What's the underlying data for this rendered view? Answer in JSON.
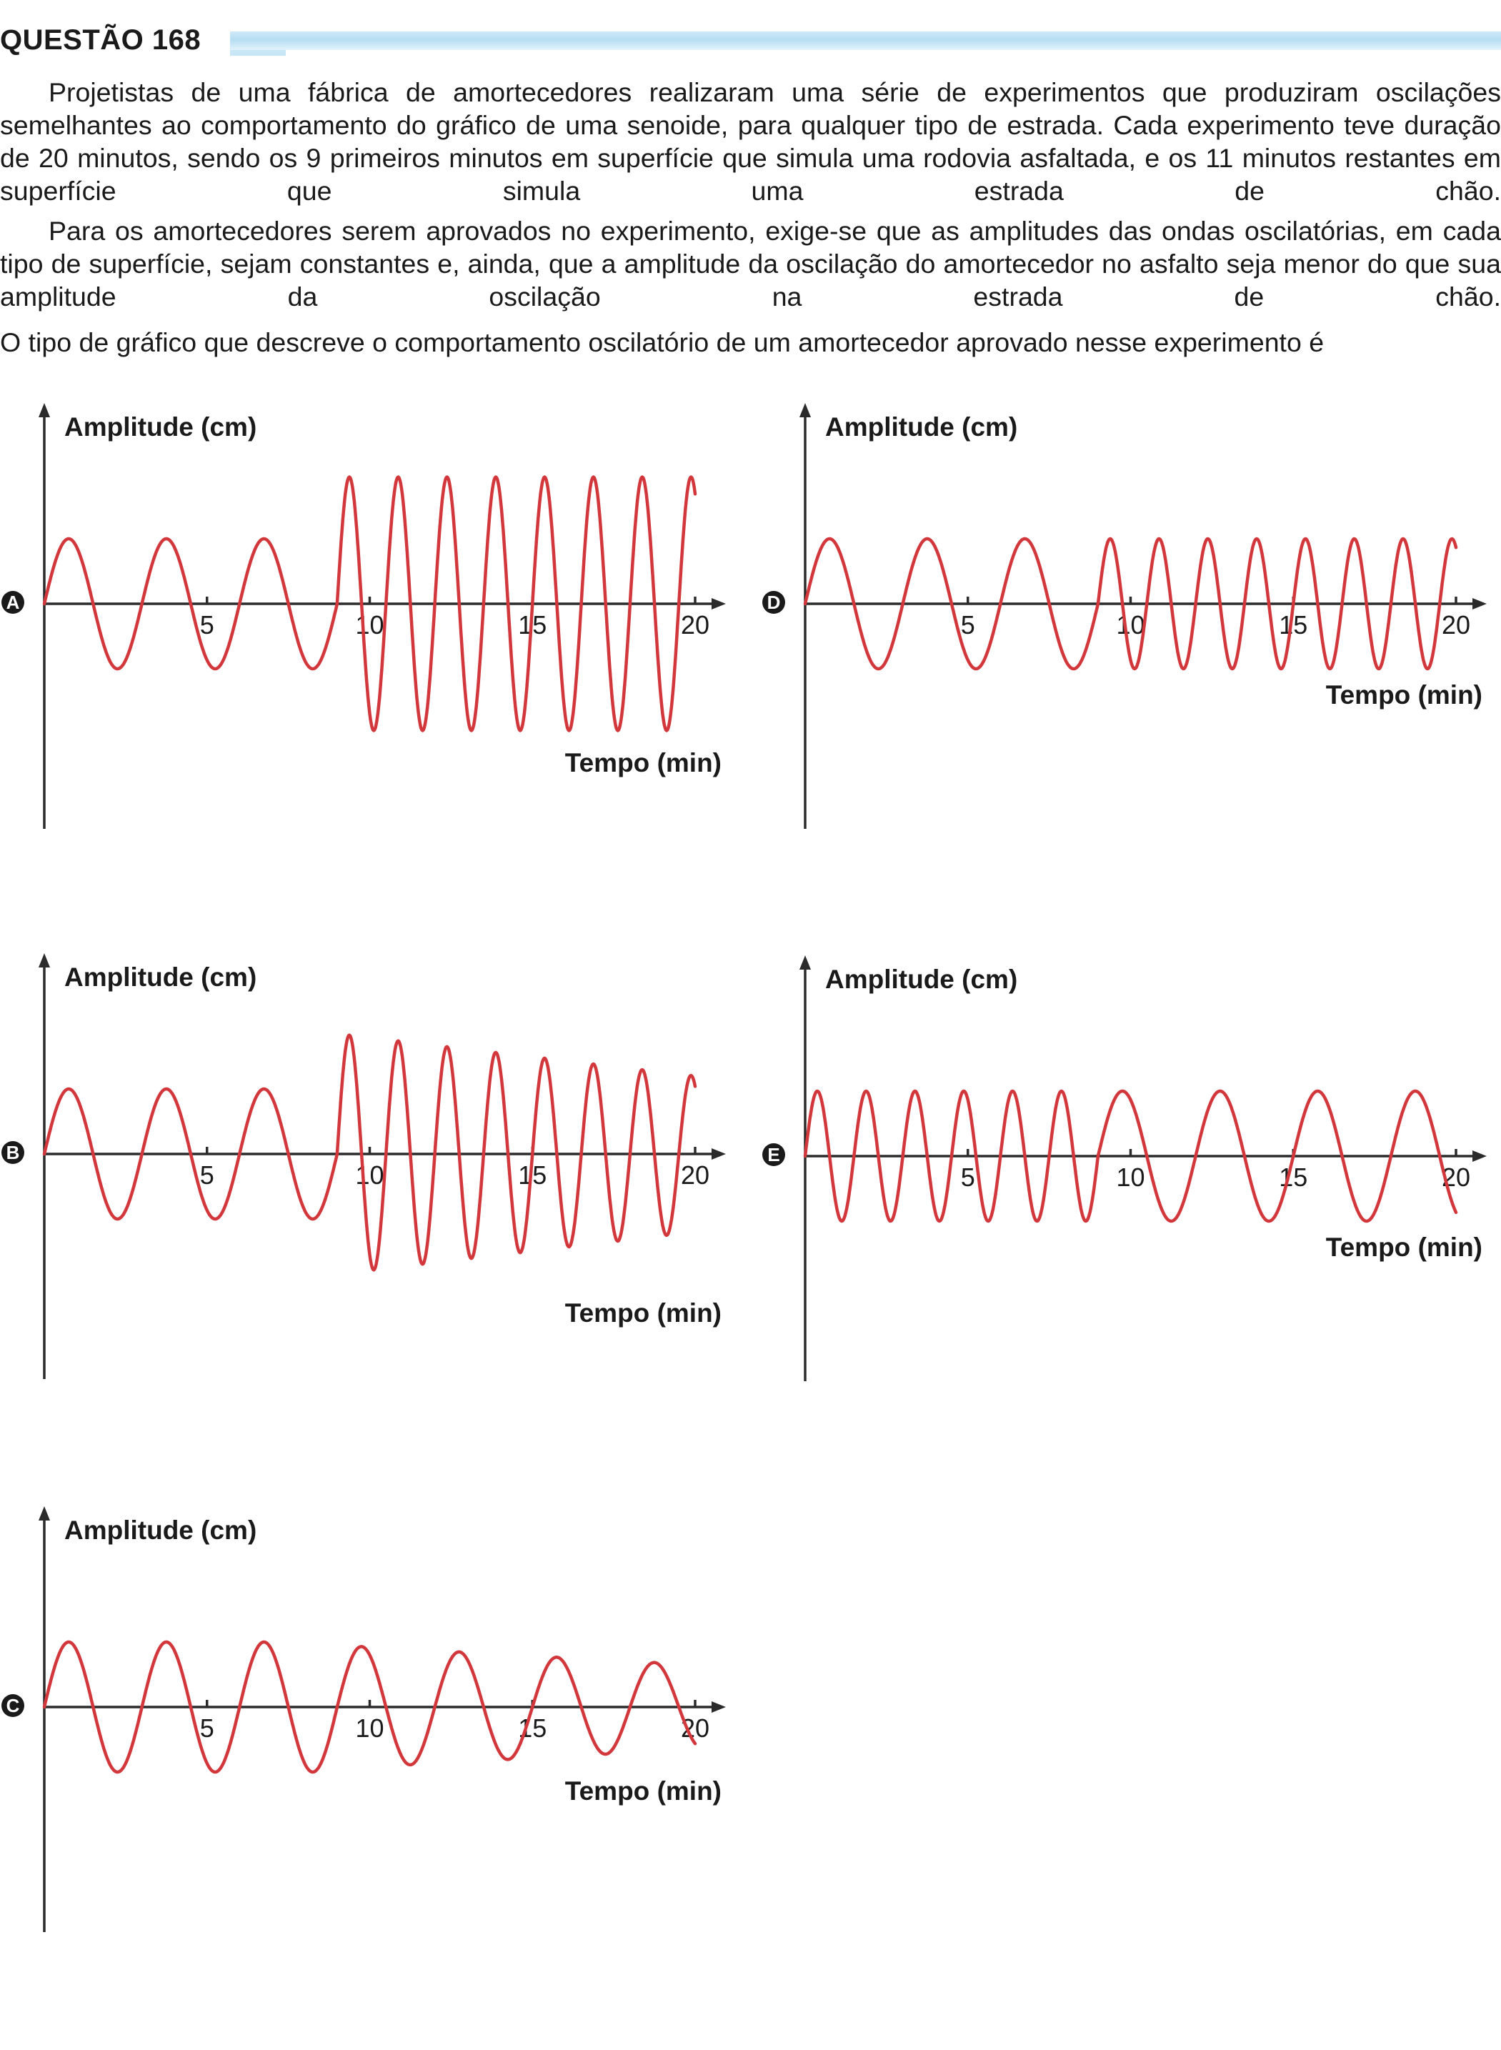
{
  "question": {
    "title": "QUESTÃO 168",
    "paragraph1": "Projetistas de uma fábrica de amortecedores realizaram uma série de experimentos que produziram oscilações semelhantes ao comportamento do gráfico de uma senoide, para qualquer tipo de estrada. Cada experimento teve duração de 20 minutos, sendo os 9 primeiros minutos em superfície que simula uma rodovia asfaltada, e os 11 minutos restantes em superfície que simula uma estrada de chão.",
    "paragraph2": "Para os amortecedores serem aprovados no experimento, exige-se que as amplitudes das ondas oscilatórias, em cada tipo de superfície, sejam constantes e, ainda, que a amplitude da oscilação do amortecedor no asfalto seja menor do que sua amplitude da oscilação na estrada de chão.",
    "prompt": "O tipo de gráfico que descreve o comportamento oscilatório de um amortecedor aprovado nesse experimento é"
  },
  "colors": {
    "wave": "#d2373c",
    "axis": "#2b2b2b",
    "header_bar": "#b5ddf2"
  },
  "chart_data": [
    {
      "option": "A",
      "type": "line",
      "ylabel": "Amplitude (cm)",
      "xlabel": "Tempo (min)",
      "xticks": [
        "5",
        "10",
        "15",
        "20"
      ],
      "xlim": [
        0,
        20
      ],
      "segments": [
        {
          "x_start": 0,
          "x_end": 9,
          "amplitude": 1.0,
          "period": 3.0
        },
        {
          "x_start": 9,
          "x_end": 20,
          "amplitude": 1.95,
          "period": 1.5
        }
      ]
    },
    {
      "option": "B",
      "type": "line",
      "ylabel": "Amplitude (cm)",
      "xlabel": "Tempo (min)",
      "xticks": [
        "5",
        "10",
        "15",
        "20"
      ],
      "xlim": [
        0,
        20
      ],
      "segments": [
        {
          "x_start": 0,
          "x_end": 9,
          "amplitude": 1.0,
          "period": 3.0
        },
        {
          "x_start": 9,
          "x_end": 20,
          "amplitude_start": 1.85,
          "amplitude_end": 1.2,
          "period": 1.5
        }
      ]
    },
    {
      "option": "C",
      "type": "line",
      "ylabel": "Amplitude (cm)",
      "xlabel": "Tempo (min)",
      "xticks": [
        "5",
        "10",
        "15",
        "20"
      ],
      "xlim": [
        0,
        20
      ],
      "segments": [
        {
          "x_start": 0,
          "x_end": 9,
          "amplitude": 1.0,
          "period": 3.0
        },
        {
          "x_start": 9,
          "x_end": 20,
          "amplitude_start": 0.95,
          "amplitude_end": 0.65,
          "period": 3.0
        }
      ]
    },
    {
      "option": "D",
      "type": "line",
      "ylabel": "Amplitude (cm)",
      "xlabel": "Tempo (min)",
      "xticks": [
        "5",
        "10",
        "15",
        "20"
      ],
      "xlim": [
        0,
        20
      ],
      "segments": [
        {
          "x_start": 0,
          "x_end": 9,
          "amplitude": 1.0,
          "period": 3.0
        },
        {
          "x_start": 9,
          "x_end": 20,
          "amplitude": 1.0,
          "period": 1.5
        }
      ]
    },
    {
      "option": "E",
      "type": "line",
      "ylabel": "Amplitude (cm)",
      "xlabel": "Tempo (min)",
      "xticks": [
        "5",
        "10",
        "15",
        "20"
      ],
      "xlim": [
        0,
        20
      ],
      "segments": [
        {
          "x_start": 0,
          "x_end": 9,
          "amplitude": 1.0,
          "period": 1.5
        },
        {
          "x_start": 9,
          "x_end": 20,
          "amplitude": 1.0,
          "period": 3.0
        }
      ]
    }
  ]
}
